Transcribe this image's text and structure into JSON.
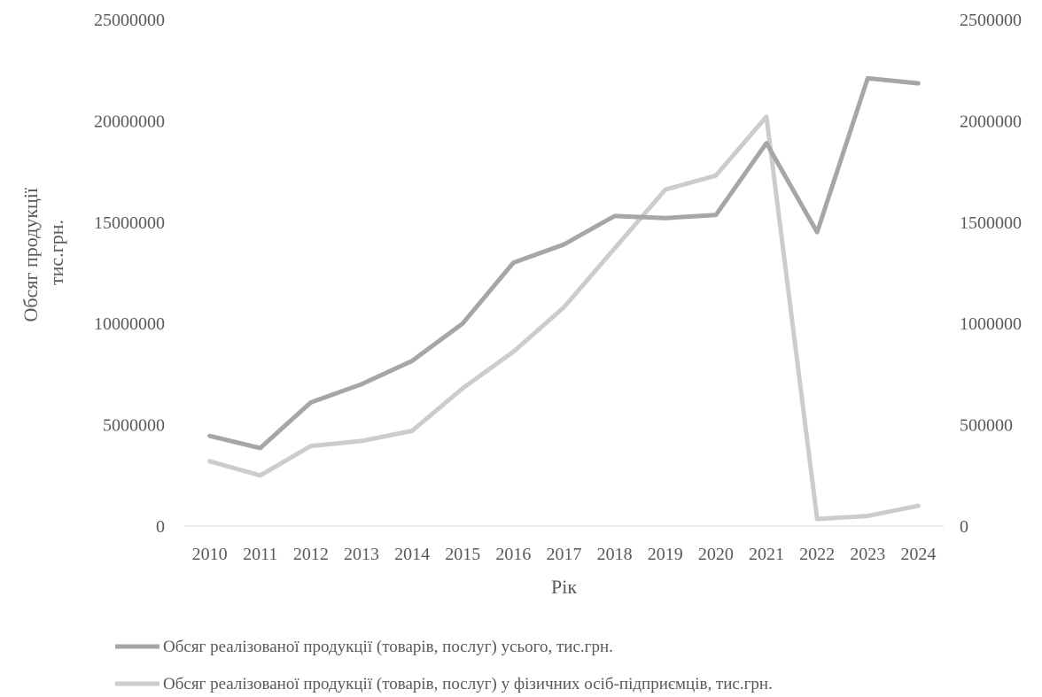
{
  "chart_data": {
    "type": "line",
    "title": "",
    "xlabel": "Рік",
    "ylabel_lines": [
      "Обсяг продукції",
      "тис.грн."
    ],
    "ylabel": "Обсяг продукції тис.грн.",
    "y2label": "",
    "categories": [
      "2010",
      "2011",
      "2012",
      "2013",
      "2014",
      "2015",
      "2016",
      "2017",
      "2018",
      "2019",
      "2020",
      "2021",
      "2022",
      "2023",
      "2024"
    ],
    "ylim": [
      0,
      25000000
    ],
    "y2lim": [
      0,
      2500000
    ],
    "yticks": [
      "0",
      "5000000",
      "10000000",
      "15000000",
      "20000000",
      "25000000"
    ],
    "y2ticks": [
      "0",
      "500000",
      "1000000",
      "1500000",
      "2000000",
      "2500000"
    ],
    "grid": false,
    "legend_position": "bottom",
    "series": [
      {
        "name": "Обсяг реалізованої продукції (товарів, послуг) усього, тис.грн.",
        "axis": "left",
        "color": "#a6a6a6",
        "values": [
          4450000,
          3850000,
          6100000,
          7000000,
          8150000,
          10000000,
          13000000,
          13900000,
          15300000,
          15200000,
          15350000,
          18900000,
          14500000,
          22100000,
          21850000
        ]
      },
      {
        "name": "Обсяг реалізованої продукції (товарів, послуг) у фізичних осіб-підприємців, тис.грн.",
        "axis": "right",
        "color": "#cccccc",
        "values": [
          320000,
          250000,
          395000,
          420000,
          470000,
          680000,
          860000,
          1080000,
          1370000,
          1660000,
          1730000,
          2020000,
          35000,
          50000,
          100000
        ]
      }
    ]
  }
}
